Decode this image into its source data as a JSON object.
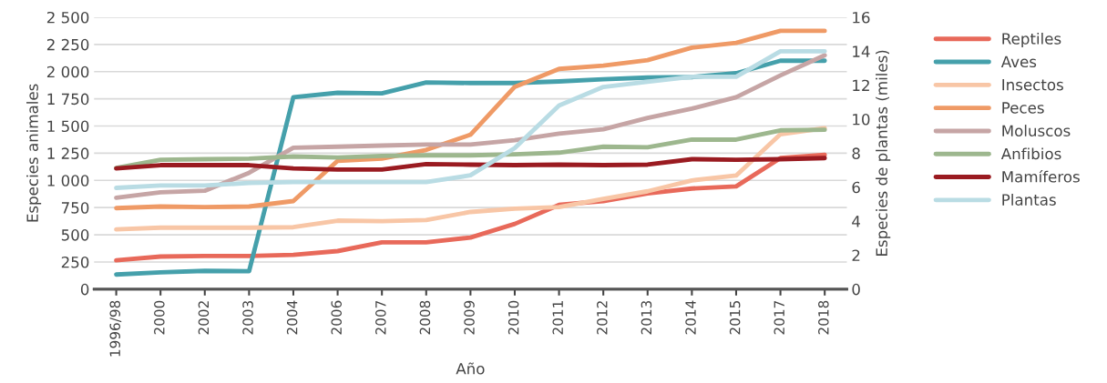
{
  "chart_data": {
    "type": "line",
    "xlabel": "Año",
    "ylabel": "Especies animales",
    "y2label": "Especies de plantas (miles)",
    "categories": [
      "1996/98",
      "2000",
      "2002",
      "2003",
      "2004",
      "2006",
      "2007",
      "2008",
      "2009",
      "2010",
      "2011",
      "2012",
      "2013",
      "2014",
      "2015",
      "2017",
      "2018"
    ],
    "series": [
      {
        "name": "Reptiles",
        "color": "#e8695a",
        "values": [
          265,
          300,
          305,
          305,
          315,
          350,
          430,
          430,
          475,
          600,
          775,
          810,
          880,
          925,
          945,
          1205,
          1235
        ]
      },
      {
        "name": "Aves",
        "color": "#45a0ab",
        "values": [
          135,
          155,
          168,
          165,
          1765,
          1805,
          1800,
          1900,
          1895,
          1895,
          1910,
          1930,
          1945,
          1950,
          1985,
          2100,
          2100
        ]
      },
      {
        "name": "Insectos",
        "color": "#f8c6a6",
        "values": [
          550,
          565,
          565,
          565,
          570,
          630,
          625,
          635,
          710,
          740,
          755,
          830,
          900,
          1000,
          1045,
          1425,
          1480
        ]
      },
      {
        "name": "Peces",
        "color": "#ef9a66",
        "values": [
          745,
          760,
          755,
          760,
          810,
          1180,
          1200,
          1280,
          1420,
          1860,
          2025,
          2055,
          2105,
          2220,
          2265,
          2375,
          2375
        ]
      },
      {
        "name": "Moluscos",
        "color": "#c6a5a5",
        "values": [
          840,
          890,
          905,
          1070,
          1300,
          1310,
          1320,
          1330,
          1330,
          1370,
          1430,
          1470,
          1575,
          1660,
          1765,
          1965,
          2150
        ]
      },
      {
        "name": "Anfibios",
        "color": "#9db78e",
        "values": [
          1115,
          1190,
          1195,
          1200,
          1220,
          1210,
          1225,
          1230,
          1230,
          1240,
          1255,
          1310,
          1305,
          1375,
          1375,
          1460,
          1465
        ]
      },
      {
        "name": "Mamíferos",
        "color": "#9a1b21",
        "values": [
          1110,
          1140,
          1140,
          1140,
          1110,
          1100,
          1100,
          1150,
          1145,
          1140,
          1145,
          1140,
          1145,
          1195,
          1190,
          1195,
          1205
        ]
      },
      {
        "name": "Plantas",
        "color": "#b9dce4",
        "axis": "y2",
        "values": [
          5.96,
          6.1,
          6.1,
          6.25,
          6.3,
          6.3,
          6.3,
          6.3,
          6.7,
          8.3,
          10.8,
          11.9,
          12.2,
          12.5,
          12.5,
          14.0,
          14.0
        ]
      }
    ],
    "ylim": [
      0,
      2500
    ],
    "yticks": [
      0,
      {
        "value": 250,
        "label": "250"
      },
      {
        "value": 500,
        "label": "500"
      },
      {
        "value": 750,
        "label": "750"
      },
      {
        "value": 1000,
        "label": "1 000"
      },
      {
        "value": 1250,
        "label": "1 250"
      },
      {
        "value": 1500,
        "label": "1 500"
      },
      {
        "value": 1750,
        "label": "1 750"
      },
      {
        "value": 2000,
        "label": "2 000"
      },
      {
        "value": 2250,
        "label": "2 250"
      },
      {
        "value": 2500,
        "label": "2 500"
      }
    ],
    "y2lim": [
      0,
      16
    ],
    "y2ticks": [
      0,
      2,
      4,
      6,
      8,
      10,
      12,
      14,
      16
    ],
    "grid": "y",
    "legend": "right",
    "line_style": "solid",
    "marker": "none"
  }
}
